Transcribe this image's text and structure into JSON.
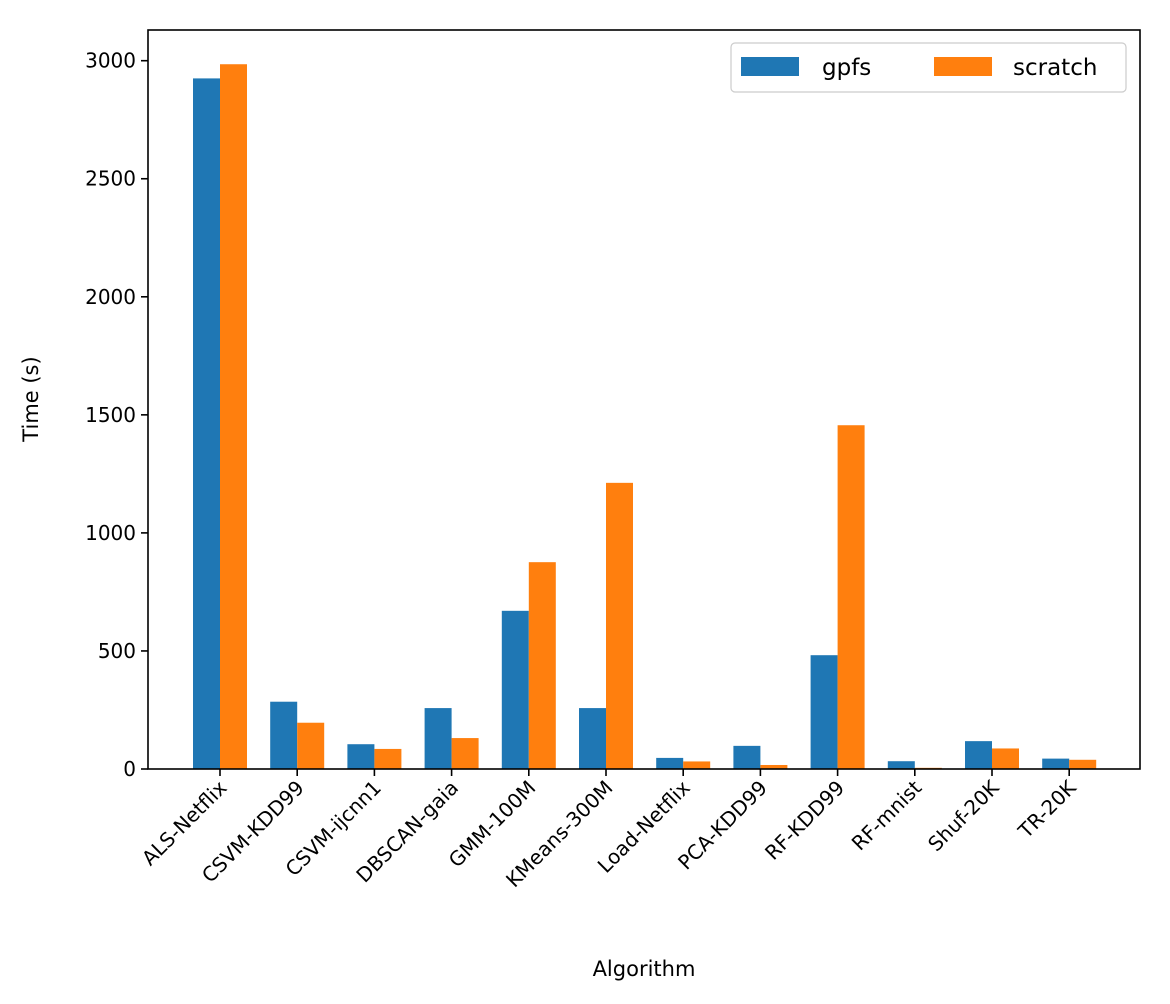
{
  "chart_data": {
    "type": "bar",
    "title": "",
    "xlabel": "Algorithm",
    "ylabel": "Time (s)",
    "categories": [
      "ALS-Netflix",
      "CSVM-KDD99",
      "CSVM-ijcnn1",
      "DBSCAN-gaia",
      "GMM-100M",
      "KMeans-300M",
      "Load-Netflix",
      "PCA-KDD99",
      "RF-KDD99",
      "RF-mnist",
      "Shuf-20K",
      "TR-20K"
    ],
    "series": [
      {
        "name": "gpfs",
        "color": "#1f77b4",
        "values": [
          2925,
          285,
          105,
          258,
          670,
          258,
          47,
          98,
          482,
          33,
          118,
          44
        ]
      },
      {
        "name": "scratch",
        "color": "#ff7f0e",
        "values": [
          2985,
          196,
          85,
          131,
          876,
          1212,
          32,
          17,
          1456,
          5,
          87,
          39
        ]
      }
    ],
    "ylim": [
      0,
      3130
    ],
    "yticks": [
      0,
      500,
      1000,
      1500,
      2000,
      2500,
      3000
    ],
    "grid": false,
    "legend_position": "top-right"
  }
}
